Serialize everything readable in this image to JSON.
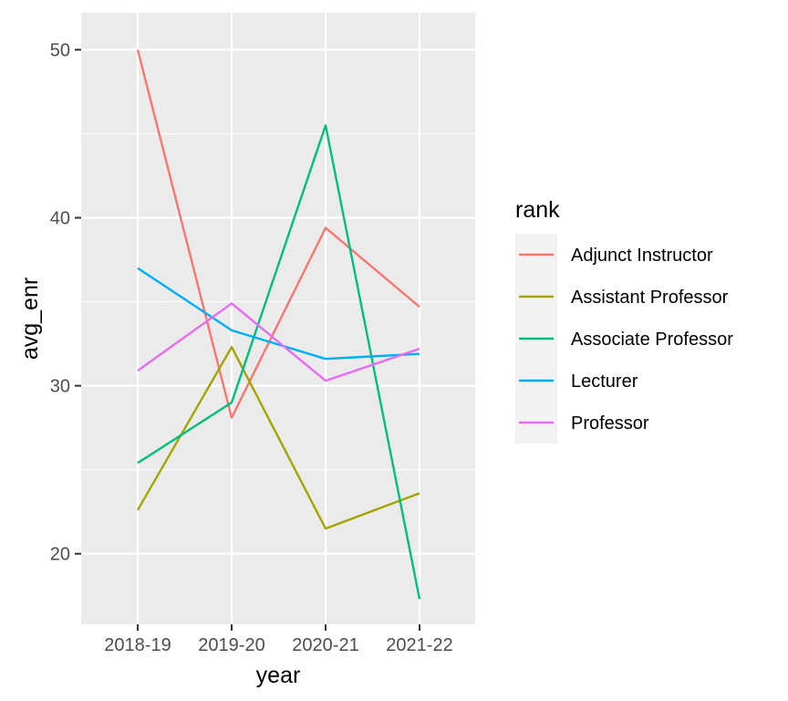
{
  "chart_data": {
    "type": "line",
    "xlabel": "year",
    "ylabel": "avg_enr",
    "categories": [
      "2018-19",
      "2019-20",
      "2020-21",
      "2021-22"
    ],
    "ylim": [
      15.8,
      52.2
    ],
    "yticks": [
      20,
      30,
      40,
      50
    ],
    "y_minor_ticks": [
      25,
      35,
      45
    ],
    "grid": true,
    "legend": {
      "title": "rank",
      "position": "right"
    },
    "series": [
      {
        "name": "Adjunct Instructor",
        "color": "#F8766D",
        "values": [
          50.0,
          28.1,
          39.4,
          34.7
        ]
      },
      {
        "name": "Assistant Professor",
        "color": "#A3A500",
        "values": [
          22.6,
          32.3,
          21.5,
          23.6
        ]
      },
      {
        "name": "Associate Professor",
        "color": "#00BF7D",
        "values": [
          25.4,
          29.0,
          45.5,
          17.3
        ]
      },
      {
        "name": "Lecturer",
        "color": "#00B0F6",
        "values": [
          37.0,
          33.3,
          31.6,
          31.9
        ]
      },
      {
        "name": "Professor",
        "color": "#E76BF3",
        "values": [
          30.9,
          34.9,
          30.3,
          32.2
        ]
      }
    ]
  }
}
